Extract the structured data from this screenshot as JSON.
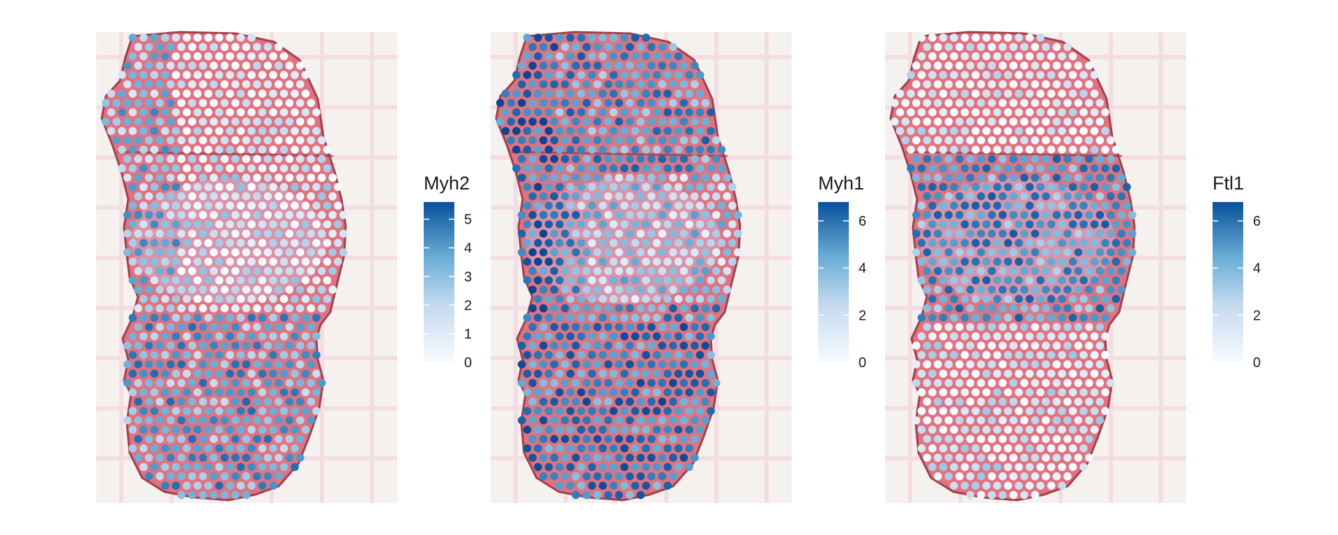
{
  "chart_data": [
    {
      "type": "scatter",
      "subtype": "spatial-expression-over-tissue-image",
      "gene": "Myh2",
      "legend": {
        "title": "Myh2",
        "ticks": [
          "0",
          "1",
          "2",
          "3",
          "4",
          "5"
        ],
        "range": [
          0,
          5.6
        ]
      },
      "colors": {
        "low": "#f7fbff",
        "mid": "#6baed6",
        "high": "#08519c",
        "tissue": "#e47a84"
      },
      "pattern": "high at top-left corner and bottom lobe; low in top area and center band"
    },
    {
      "type": "scatter",
      "subtype": "spatial-expression-over-tissue-image",
      "gene": "Myh1",
      "legend": {
        "title": "Myh1",
        "ticks": [
          "0",
          "2",
          "4",
          "6"
        ],
        "range": [
          0,
          6.8
        ]
      },
      "colors": {
        "low": "#f7fbff",
        "mid": "#6baed6",
        "high": "#08519c",
        "tissue": "#e47a84"
      },
      "pattern": "high across most of the section, strongest at the left edge and bottom lobe; lower in center band"
    },
    {
      "type": "scatter",
      "subtype": "spatial-expression-over-tissue-image",
      "gene": "Ftl1",
      "legend": {
        "title": "Ftl1",
        "ticks": [
          "0",
          "2",
          "4",
          "6"
        ],
        "range": [
          0,
          6.8
        ]
      },
      "colors": {
        "low": "#f7fbff",
        "mid": "#6baed6",
        "high": "#08519c",
        "tissue": "#e47a84"
      },
      "pattern": "high in the middle band; low in the top and bottom regions"
    }
  ]
}
